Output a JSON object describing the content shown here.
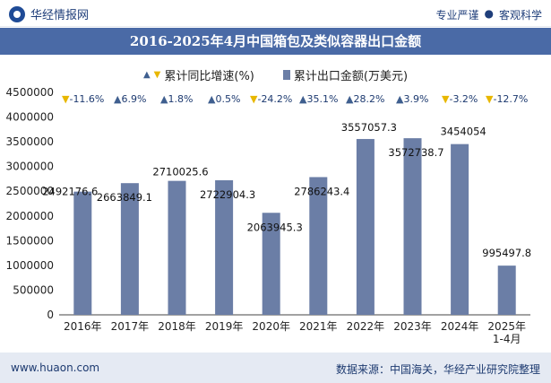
{
  "header": {
    "site_name": "华经情报网",
    "tagline_left": "专业严谨",
    "tagline_sep": "●",
    "tagline_right": "客观科学"
  },
  "title": "2016-2025年4月中国箱包及类似容器出口金额",
  "legend": {
    "yoy_label": "累计同比增速(%)",
    "value_label": "累计出口金额(万美元)"
  },
  "footer": {
    "website": "www.huaon.com",
    "source": "数据来源：中国海关，华经产业研究院整理"
  },
  "colors": {
    "bar": "#6b7ea6",
    "title_bg": "#4a6aa6",
    "up": "#3f5f8f",
    "down": "#e8b700",
    "footer_bg": "#e5eaf3"
  },
  "chart_data": {
    "type": "bar",
    "title": "2016-2025年4月中国箱包及类似容器出口金额",
    "categories": [
      "2016年",
      "2017年",
      "2018年",
      "2019年",
      "2020年",
      "2021年",
      "2022年",
      "2023年",
      "2024年",
      "2025年\n1-4月"
    ],
    "series": [
      {
        "name": "累计出口金额(万美元)",
        "values": [
          2492176.6,
          2663849.1,
          2710025.6,
          2722904.3,
          2063945.3,
          2786243.4,
          3557057.3,
          3572738.7,
          3454054,
          995497.8
        ],
        "labels": [
          "2492176.6",
          "2663849.1",
          "2710025.6",
          "2722904.3",
          "2063945.3",
          "2786243.4",
          "3557057.3",
          "3572738.7",
          "3454054",
          "995497.8"
        ]
      },
      {
        "name": "累计同比增速(%)",
        "values": [
          -11.6,
          6.9,
          1.8,
          0.5,
          -24.2,
          35.1,
          28.2,
          3.9,
          -3.2,
          -12.7
        ],
        "labels": [
          "-11.6%",
          "6.9%",
          "1.8%",
          "0.5%",
          "-24.2%",
          "35.1%",
          "28.2%",
          "3.9%",
          "-3.2%",
          "-12.7%"
        ]
      }
    ],
    "ylim": [
      0,
      4500000
    ],
    "yticks": [
      "0",
      "500000",
      "1000000",
      "1500000",
      "2000000",
      "2500000",
      "3000000",
      "3500000",
      "4000000",
      "4500000"
    ],
    "grid": false,
    "legend_position": "top"
  }
}
